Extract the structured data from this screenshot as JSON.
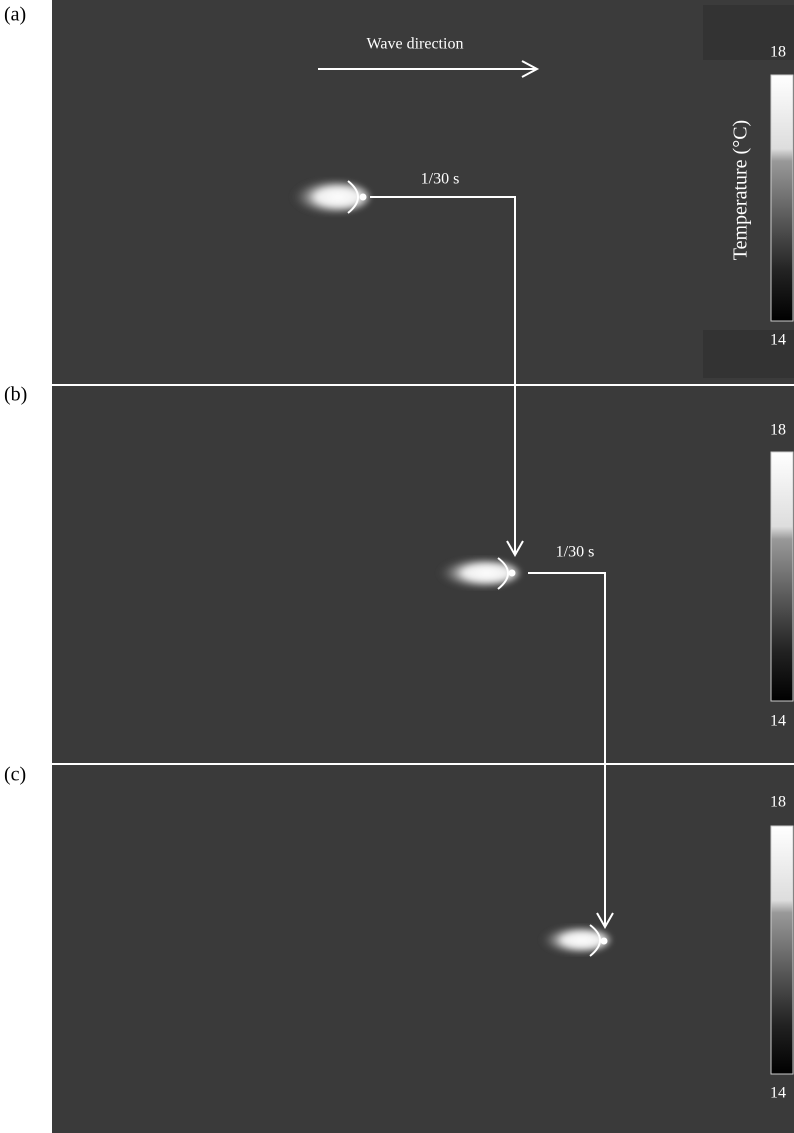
{
  "panels": [
    {
      "label": "(a)",
      "colorbar": {
        "max": "18",
        "min": "14"
      }
    },
    {
      "label": "(b)",
      "colorbar": {
        "max": "18",
        "min": "14"
      }
    },
    {
      "label": "(c)",
      "colorbar": {
        "max": "18",
        "min": "14"
      }
    }
  ],
  "wave_direction": "Wave direction",
  "colorbar_title": "Temperature (°C)",
  "time_steps": [
    "1/30 s",
    "1/30 s"
  ]
}
